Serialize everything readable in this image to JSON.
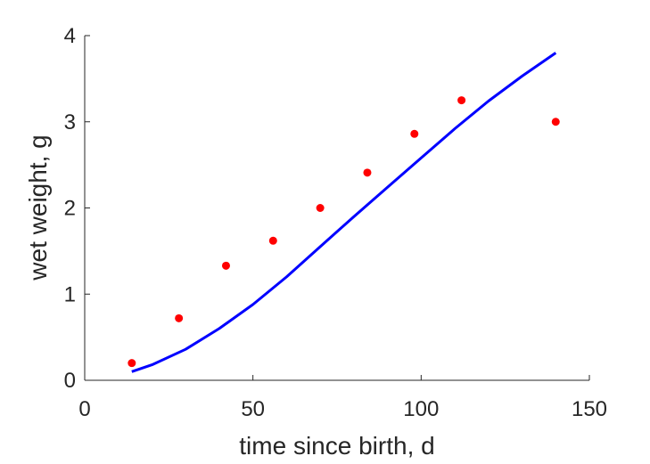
{
  "chart_data": {
    "type": "scatter",
    "xlabel": "time since birth, d",
    "ylabel": "wet weight, g",
    "xlim": [
      0,
      150
    ],
    "ylim": [
      0,
      4
    ],
    "xticks": [
      0,
      50,
      100,
      150
    ],
    "yticks": [
      0,
      1,
      2,
      3,
      4
    ],
    "grid": false,
    "series": [
      {
        "type": "scatter",
        "color": "#ff0000",
        "x": [
          14,
          28,
          42,
          56,
          70,
          84,
          98,
          112,
          140
        ],
        "y": [
          0.2,
          0.72,
          1.33,
          1.62,
          2.0,
          2.41,
          2.86,
          3.25,
          3.0
        ]
      },
      {
        "type": "line",
        "color": "#0000ff",
        "x": [
          14,
          20,
          30,
          40,
          50,
          60,
          70,
          80,
          90,
          100,
          110,
          120,
          130,
          140
        ],
        "y": [
          0.1,
          0.18,
          0.36,
          0.6,
          0.88,
          1.2,
          1.55,
          1.9,
          2.24,
          2.58,
          2.92,
          3.24,
          3.53,
          3.8
        ]
      }
    ]
  }
}
